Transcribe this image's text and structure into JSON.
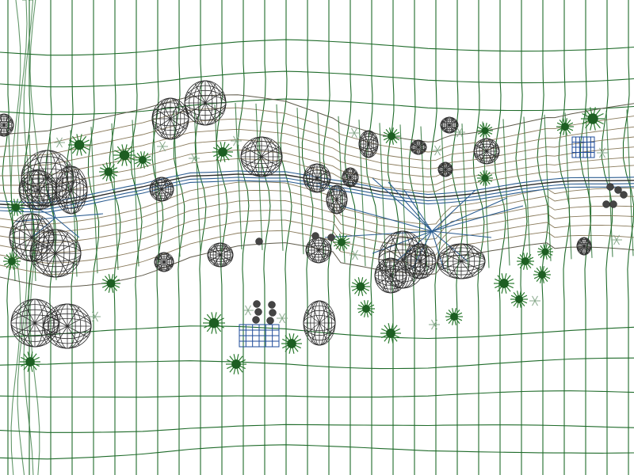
{
  "view": {
    "type": "wireframe-terrain-viewport",
    "description_visible_text": ""
  },
  "colors": {
    "background": "#ffffff",
    "terrain_grid": "#1f6b2a",
    "path_rings": "#8a7b5c",
    "stream": "#2c5d91",
    "rocks": "#2e2e2e",
    "furniture": "#1e4b9a",
    "plants": "#1d5e22"
  },
  "objects": {
    "terrain_grid": "wireframe-terrain",
    "path": "curved-garden-path",
    "stream": "stream-channel",
    "rocks": "geodesic-rock-wireframes",
    "plants": "spiky-shrubs",
    "small_plants": "star-groundcover",
    "furniture": "wire-bench-blocks",
    "stones": "small-dark-stones"
  }
}
